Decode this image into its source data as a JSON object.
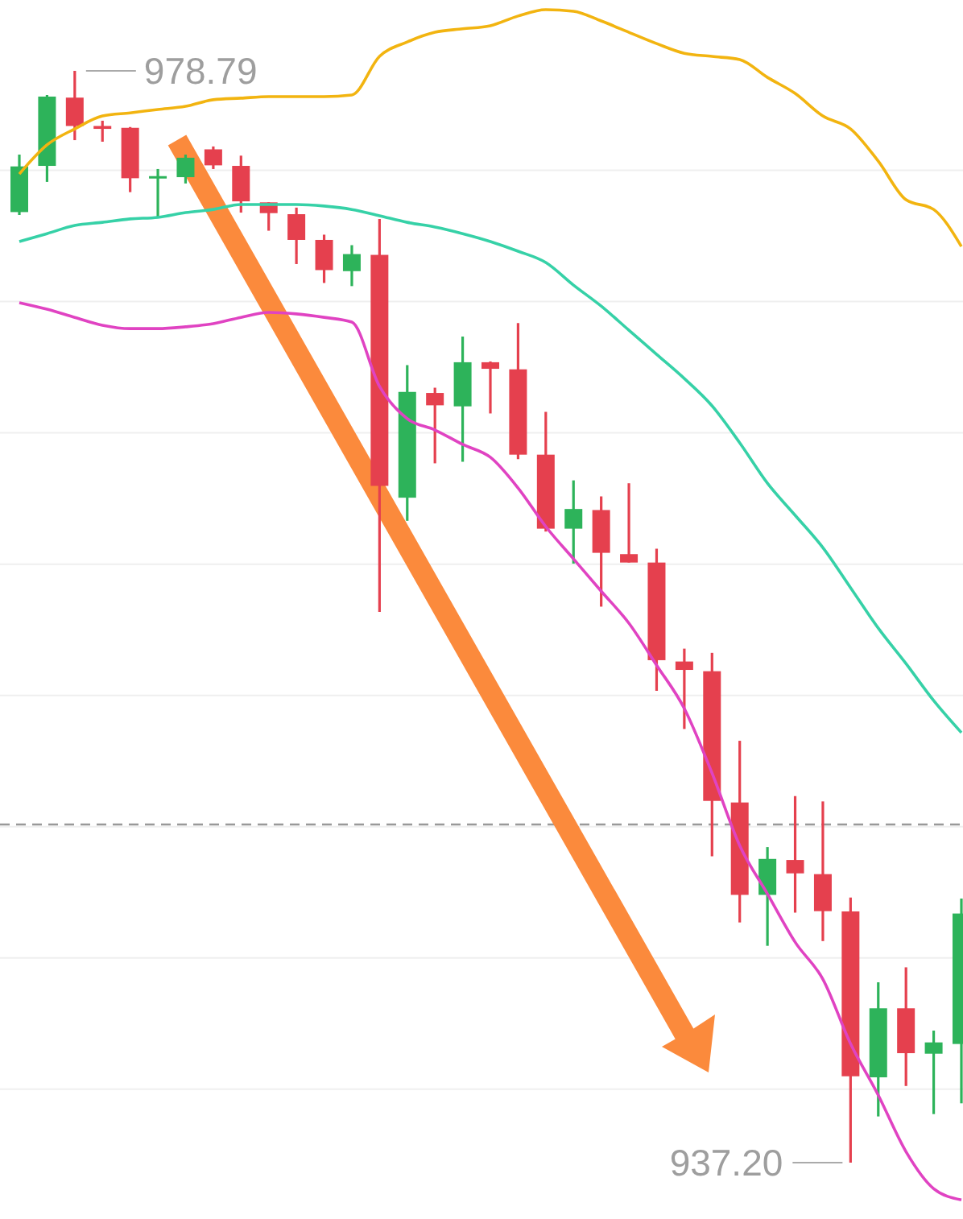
{
  "chart_data": {
    "type": "candlestick",
    "categories": [
      null,
      null,
      null,
      null,
      null,
      null,
      null,
      null,
      null,
      null,
      null,
      null,
      null,
      null,
      null,
      null,
      null,
      null,
      null,
      null,
      null,
      null,
      null,
      null,
      null,
      null,
      null,
      null,
      null,
      null,
      null,
      null,
      null,
      null,
      null
    ],
    "ohlc": [
      [
        973.41,
        975.6,
        973.3,
        975.15
      ],
      [
        975.17,
        977.87,
        974.56,
        977.81
      ],
      [
        977.77,
        978.79,
        976.15,
        976.69
      ],
      [
        976.69,
        976.89,
        976.09,
        976.58
      ],
      [
        976.62,
        976.65,
        974.17,
        974.7
      ],
      [
        974.7,
        975.05,
        973.21,
        974.78
      ],
      [
        974.74,
        975.6,
        974.5,
        975.48
      ],
      [
        975.8,
        975.91,
        975.05,
        975.19
      ],
      [
        975.17,
        975.56,
        973.39,
        973.82
      ],
      [
        973.78,
        973.78,
        972.7,
        973.37
      ],
      [
        973.33,
        973.58,
        971.43,
        972.35
      ],
      [
        972.35,
        972.55,
        970.71,
        971.2
      ],
      [
        971.16,
        972.15,
        970.59,
        971.81
      ],
      [
        971.78,
        973.15,
        958.18,
        962.98
      ],
      [
        962.53,
        967.58,
        961.65,
        966.56
      ],
      [
        966.52,
        966.72,
        963.84,
        966.05
      ],
      [
        966.01,
        968.67,
        963.9,
        967.69
      ],
      [
        967.69,
        967.72,
        965.74,
        967.44
      ],
      [
        967.42,
        969.18,
        964.0,
        964.17
      ],
      [
        964.17,
        965.8,
        961.24,
        961.35
      ],
      [
        961.35,
        963.19,
        960.02,
        962.1
      ],
      [
        962.06,
        962.58,
        958.38,
        960.43
      ],
      [
        960.38,
        963.08,
        960.06,
        960.06
      ],
      [
        960.06,
        960.59,
        955.17,
        956.34
      ],
      [
        956.29,
        956.78,
        953.72,
        955.97
      ],
      [
        955.92,
        956.62,
        948.87,
        950.98
      ],
      [
        950.92,
        953.27,
        946.35,
        947.4
      ],
      [
        947.4,
        949.22,
        945.46,
        948.77
      ],
      [
        948.73,
        951.16,
        946.72,
        948.22
      ],
      [
        948.19,
        950.96,
        945.64,
        946.78
      ],
      [
        946.77,
        947.3,
        937.2,
        940.49
      ],
      [
        940.45,
        944.07,
        938.96,
        943.08
      ],
      [
        943.08,
        944.64,
        940.12,
        941.37
      ],
      [
        941.35,
        942.23,
        939.05,
        941.78
      ],
      [
        941.72,
        947.26,
        939.46,
        946.69
      ]
    ],
    "colors": [
      "#2db35a",
      "#2db35a",
      "#e5404e",
      "#e5404e",
      "#e5404e",
      "#2db35a",
      "#2db35a",
      "#e5404e",
      "#e5404e",
      "#e5404e",
      "#e5404e",
      "#e5404e",
      "#2db35a",
      "#e5404e",
      "#2db35a",
      "#e5404e",
      "#2db35a",
      "#e5404e",
      "#e5404e",
      "#e5404e",
      "#2db35a",
      "#e5404e",
      "#e5404e",
      "#e5404e",
      "#e5404e",
      "#e5404e",
      "#e5404e",
      "#2db35a",
      "#e5404e",
      "#e5404e",
      "#e5404e",
      "#2db35a",
      "#e5404e",
      "#2db35a",
      "#2db35a"
    ],
    "series": [
      {
        "type": "line",
        "color": "#f2b410",
        "values": [
          974.86,
          975.97,
          976.58,
          977.07,
          977.19,
          977.32,
          977.44,
          977.69,
          977.75,
          977.81,
          977.81,
          977.81,
          977.87,
          979.34,
          979.89,
          980.26,
          980.39,
          980.51,
          980.88,
          981.12,
          981.06,
          980.69,
          980.26,
          979.83,
          979.46,
          979.34,
          979.22,
          978.54,
          977.93,
          977.07,
          976.58,
          975.35,
          973.88,
          973.51,
          972.1
        ]
      },
      {
        "type": "line",
        "color": "#36d1a7",
        "values": [
          972.29,
          972.59,
          972.9,
          973.02,
          973.15,
          973.21,
          973.39,
          973.51,
          973.7,
          973.7,
          973.7,
          973.64,
          973.51,
          973.27,
          973.02,
          972.84,
          972.59,
          972.29,
          971.92,
          971.49,
          970.63,
          969.83,
          968.91,
          967.99,
          967.07,
          966.03,
          964.62,
          963.08,
          961.86,
          960.63,
          959.1,
          957.56,
          956.21,
          954.8,
          953.58
        ]
      },
      {
        "type": "line",
        "color": "#e043c2",
        "values": [
          969.96,
          969.71,
          969.4,
          969.1,
          968.97,
          968.97,
          969.04,
          969.16,
          969.4,
          969.59,
          969.53,
          969.4,
          969.22,
          966.77,
          965.54,
          965.11,
          964.56,
          964.07,
          962.9,
          961.43,
          960.2,
          958.97,
          957.75,
          956.15,
          954.5,
          952.04,
          949.28,
          947.44,
          945.6,
          944.19,
          941.73,
          939.77,
          937.62,
          936.21,
          935.78
        ]
      }
    ],
    "yticks": [
      {
        "value": 940,
        "label": null
      },
      {
        "value": 945,
        "label": null
      },
      {
        "value": 950,
        "label": null
      },
      {
        "value": 955,
        "label": null
      },
      {
        "value": 960,
        "label": null
      },
      {
        "value": 965,
        "label": null
      },
      {
        "value": 970,
        "label": null
      },
      {
        "value": 975,
        "label": null
      }
    ],
    "grid": "y",
    "tick_labels": false,
    "ref_lines": [
      {
        "axis": "y",
        "value": 950.08,
        "color": "#999999",
        "line_style": "dashed"
      }
    ],
    "annotations": [
      "978.79",
      "937.20"
    ]
  }
}
